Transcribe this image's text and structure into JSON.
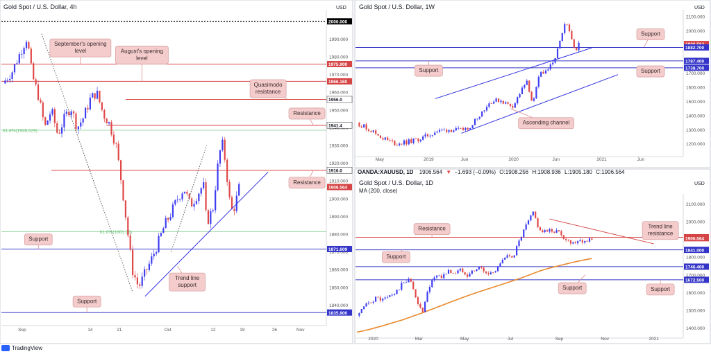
{
  "brand": "TradingView",
  "colors": {
    "up": "#3d3df2",
    "down": "#e04848",
    "hline_red": "#d64545",
    "hline_blue": "#3434c8",
    "trend": "#3434e0",
    "ma": "#e8892c",
    "fib": "#5fc070",
    "note_bg": "#f4cccc",
    "note_border": "#d9a3a3"
  },
  "chart_data": [
    {
      "type": "line",
      "title": "Gold Spot / U.S. Dollar, 4h",
      "currency": "USD",
      "ylim": [
        1830,
        2005
      ],
      "yticks": [
        "1840.000",
        "1850.000",
        "1860.000",
        "1870.000",
        "1880.000",
        "1890.000",
        "1900.000",
        "1910.000",
        "1920.000",
        "1930.000",
        "1940.000",
        "1950.000",
        "1960.000",
        "1970.000",
        "1980.000",
        "1990.000"
      ],
      "xticks": [
        {
          "x": 0.06,
          "label": "Sep"
        },
        {
          "x": 0.27,
          "label": "14"
        },
        {
          "x": 0.36,
          "label": "21"
        },
        {
          "x": 0.51,
          "label": "Oct"
        },
        {
          "x": 0.65,
          "label": "12"
        },
        {
          "x": 0.74,
          "label": "19"
        },
        {
          "x": 0.84,
          "label": "26"
        },
        {
          "x": 0.92,
          "label": "Nov"
        }
      ],
      "series": [
        {
          "values": [
            1965,
            1972,
            1985,
            1991,
            1970,
            1958,
            1940,
            1950,
            1936,
            1945,
            1952,
            1940,
            1946,
            1956,
            1960,
            1948,
            1942,
            1930,
            1905,
            1890,
            1875,
            1860,
            1850,
            1858,
            1866,
            1875,
            1885,
            1892,
            1900,
            1906,
            1896,
            1902,
            1908,
            1886,
            1895,
            1912,
            1926,
            1931,
            1918,
            1900,
            1892,
            1898,
            1906
          ]
        }
      ],
      "x": [
        0.0,
        0.03,
        0.06,
        0.075,
        0.09,
        0.11,
        0.13,
        0.15,
        0.17,
        0.19,
        0.21,
        0.23,
        0.25,
        0.27,
        0.29,
        0.31,
        0.33,
        0.35,
        0.37,
        0.38,
        0.39,
        0.4,
        0.42,
        0.44,
        0.46,
        0.48,
        0.5,
        0.52,
        0.54,
        0.56,
        0.58,
        0.6,
        0.62,
        0.63,
        0.65,
        0.66,
        0.67,
        0.68,
        0.69,
        0.7,
        0.71,
        0.72,
        0.73
      ],
      "xlim": [
        0,
        1
      ],
      "hlines": [
        {
          "value": 2000.0,
          "style": "dotted-black",
          "label": "2000.000",
          "tag": "black"
        },
        {
          "value": 1975.9,
          "style": "red",
          "label": "1975.900",
          "tag": "red"
        },
        {
          "value": 1966.16,
          "style": "red",
          "label": "1966.160",
          "tag": "red"
        },
        {
          "value": 1956.0,
          "style": "red",
          "label": "1956.0",
          "tag": "white",
          "x0": 0.38
        },
        {
          "value": 1941.4,
          "style": "red",
          "label": "1941.4",
          "tag": "white",
          "x0": 0.32
        },
        {
          "value": 1916.0,
          "style": "red",
          "label": "1916.0",
          "tag": "white",
          "x0": 0.15
        },
        {
          "value": 1906.564,
          "style": "none",
          "label": "1906.564",
          "tag": "red"
        },
        {
          "value": 1871.609,
          "style": "blue",
          "label": "1871.609",
          "tag": "blue"
        },
        {
          "value": 1835.8,
          "style": "blue",
          "label": "1835.800",
          "tag": "blue"
        }
      ],
      "fib": [
        {
          "value": 1938.629,
          "label": "61.8%(1938.629)"
        },
        {
          "value": 1881.29,
          "label": "61.8%(1881.29)"
        }
      ],
      "trendlines": [
        {
          "points": [
            [
              0.44,
              1845
            ],
            [
              0.82,
              1915
            ]
          ],
          "style": "solid"
        },
        {
          "points": [
            [
              0.12,
              1993
            ],
            [
              0.4,
              1848
            ]
          ],
          "style": "dotted"
        },
        {
          "points": [
            [
              0.52,
              1870
            ],
            [
              0.63,
              1930
            ]
          ],
          "style": "dotted"
        }
      ],
      "annotations": [
        {
          "text": [
            "September's opening",
            "level"
          ],
          "x": 0.24,
          "y": 1985,
          "arrow": [
            0.24,
            1975.9
          ]
        },
        {
          "text": [
            "August's opening",
            "level"
          ],
          "x": 0.43,
          "y": 1981,
          "arrow": [
            0.43,
            1966.16
          ]
        },
        {
          "text": [
            "Quasimodo",
            "resistance"
          ],
          "x": 0.82,
          "y": 1962,
          "arrow": [
            0.88,
            1956
          ]
        },
        {
          "text": [
            "Resistance"
          ],
          "x": 0.94,
          "y": 1948,
          "arrow": [
            0.96,
            1941.4
          ]
        },
        {
          "text": [
            "Resistance"
          ],
          "x": 0.94,
          "y": 1909,
          "arrow": [
            0.96,
            1916
          ]
        },
        {
          "text": [
            "Support"
          ],
          "x": 0.11,
          "y": 1877,
          "arrow": [
            0.11,
            1871.6
          ]
        },
        {
          "text": [
            "Trend line",
            "support"
          ],
          "x": 0.57,
          "y": 1853,
          "arrow": [
            0.54,
            1862
          ]
        },
        {
          "text": [
            "Support"
          ],
          "x": 0.26,
          "y": 1842,
          "arrow": [
            0.26,
            1835.8
          ]
        }
      ]
    },
    {
      "type": "line",
      "title": "Gold Spot / U.S. Dollar, 1W",
      "currency": "USD",
      "ylim": [
        1130,
        2130
      ],
      "yticks": [
        "1100.000",
        "1200.000",
        "1300.000",
        "1400.000",
        "1500.000",
        "1600.000",
        "1700.000",
        "1800.000",
        "1900.000",
        "2000.000",
        "2100.000"
      ],
      "xticks": [
        {
          "x": 0.07,
          "label": "May"
        },
        {
          "x": 0.22,
          "label": "2019"
        },
        {
          "x": 0.33,
          "label": "Jun"
        },
        {
          "x": 0.48,
          "label": "2020"
        },
        {
          "x": 0.61,
          "label": "Jun"
        },
        {
          "x": 0.75,
          "label": "2021"
        },
        {
          "x": 0.87,
          "label": "Jun"
        }
      ],
      "x": [
        0.0,
        0.04,
        0.08,
        0.12,
        0.16,
        0.2,
        0.24,
        0.28,
        0.32,
        0.35,
        0.38,
        0.41,
        0.44,
        0.46,
        0.48,
        0.5,
        0.52,
        0.54,
        0.56,
        0.58,
        0.6,
        0.62,
        0.64,
        0.65,
        0.66,
        0.67,
        0.68
      ],
      "series": [
        {
          "values": [
            1350,
            1300,
            1240,
            1200,
            1215,
            1240,
            1285,
            1300,
            1295,
            1330,
            1420,
            1500,
            1510,
            1480,
            1470,
            1560,
            1640,
            1480,
            1700,
            1720,
            1760,
            1900,
            2060,
            1990,
            1930,
            1870,
            1906
          ]
        }
      ],
      "xlim": [
        0,
        1
      ],
      "hlines": [
        {
          "value": 1906.564,
          "style": "none",
          "label": "1906.564",
          "tag": "red"
        },
        {
          "value": 1882.7,
          "style": "blue",
          "label": "1882.700",
          "tag": "blue"
        },
        {
          "value": 1787.4,
          "style": "blue",
          "label": "1787.400",
          "tag": "blue"
        },
        {
          "value": 1738.7,
          "style": "blue",
          "label": "1738.700",
          "tag": "blue"
        }
      ],
      "fib": [],
      "trendlines": [
        {
          "points": [
            [
              0.24,
              1520
            ],
            [
              0.72,
              1880
            ]
          ],
          "style": "solid"
        },
        {
          "points": [
            [
              0.32,
              1275
            ],
            [
              0.8,
              1690
            ]
          ],
          "style": "solid"
        }
      ],
      "annotations": [
        {
          "text": [
            "Support"
          ],
          "x": 0.9,
          "y": 1975,
          "arrow": [
            0.88,
            1885
          ]
        },
        {
          "text": [
            "Support"
          ],
          "x": 0.22,
          "y": 1718,
          "arrow": [
            0.22,
            1787
          ]
        },
        {
          "text": [
            "Support"
          ],
          "x": 0.9,
          "y": 1713,
          "arrow": [
            0.9,
            1738
          ]
        },
        {
          "text": [
            "Ascending channel"
          ],
          "x": 0.58,
          "y": 1347,
          "arrow": [
            0.47,
            1450
          ]
        }
      ]
    },
    {
      "type": "line",
      "title": "Gold Spot / U.S. Dollar, 1D",
      "header": {
        "symbol": "OANDA:XAUUSD, 1D",
        "last": "1906.564",
        "change": "−1.693 (−0.09%)",
        "open": "1908.256",
        "high": "1908.936",
        "low": "1905.180",
        "close": "1906.564"
      },
      "indicator": "MA (200, close)",
      "currency": "USD",
      "ylim": [
        1360,
        2140
      ],
      "yticks": [
        "1400.000",
        "1500.000",
        "1600.000",
        "1700.000",
        "1800.000",
        "1900.000",
        "2000.000",
        "2100.000"
      ],
      "xticks": [
        {
          "x": 0.05,
          "label": "2020"
        },
        {
          "x": 0.19,
          "label": "Mar"
        },
        {
          "x": 0.33,
          "label": "May"
        },
        {
          "x": 0.47,
          "label": "Jul"
        },
        {
          "x": 0.62,
          "label": "Sep"
        },
        {
          "x": 0.76,
          "label": "Nov"
        },
        {
          "x": 0.91,
          "label": "2021"
        }
      ],
      "x": [
        0.0,
        0.02,
        0.04,
        0.06,
        0.08,
        0.1,
        0.12,
        0.14,
        0.16,
        0.18,
        0.2,
        0.22,
        0.24,
        0.26,
        0.28,
        0.3,
        0.32,
        0.34,
        0.36,
        0.38,
        0.4,
        0.42,
        0.44,
        0.46,
        0.48,
        0.5,
        0.52,
        0.54,
        0.56,
        0.58,
        0.6,
        0.62,
        0.64,
        0.66,
        0.68,
        0.7,
        0.72
      ],
      "series": [
        {
          "values": [
            1470,
            1510,
            1550,
            1570,
            1560,
            1580,
            1600,
            1650,
            1680,
            1580,
            1480,
            1620,
            1700,
            1690,
            1720,
            1710,
            1730,
            1700,
            1730,
            1740,
            1700,
            1720,
            1770,
            1800,
            1810,
            1900,
            1980,
            2050,
            1950,
            1940,
            1950,
            1940,
            1900,
            1880,
            1900,
            1890,
            1906
          ]
        },
        {
          "name": "MA (200, close)",
          "values": [
            1378,
            1385,
            1394,
            1404,
            1414,
            1425,
            1436,
            1447,
            1460,
            1473,
            1486,
            1500,
            1514,
            1528,
            1542,
            1556,
            1570,
            1583,
            1596,
            1608,
            1620,
            1632,
            1644,
            1656,
            1668,
            1680,
            1694,
            1708,
            1722,
            1733,
            1743,
            1752,
            1761,
            1770,
            1778,
            1786,
            1792
          ]
        }
      ],
      "xlim": [
        0,
        1
      ],
      "hlines": [
        {
          "value": 1911.9,
          "style": "red",
          "label": "1911.900",
          "tag": "red"
        },
        {
          "value": 1906.564,
          "style": "none",
          "label": "1906.564",
          "tag": "red"
        },
        {
          "value": 1841.0,
          "style": "blue",
          "label": "1841.000",
          "tag": "blue"
        },
        {
          "value": 1746.4,
          "style": "blue",
          "label": "1746.400",
          "tag": "blue"
        },
        {
          "value": 1672.5,
          "style": "blue",
          "label": "1672.500",
          "tag": "blue"
        }
      ],
      "fib": [],
      "trendlines": [
        {
          "points": [
            [
              0.59,
              2015
            ],
            [
              0.91,
              1875
            ]
          ],
          "style": "solid-red"
        }
      ],
      "annotations": [
        {
          "text": [
            "Resistance"
          ],
          "x": 0.23,
          "y": 1958,
          "arrow": [
            0.23,
            1911.9
          ]
        },
        {
          "text": [
            "Trend line",
            "resistance"
          ],
          "x": 0.93,
          "y": 1950,
          "arrow": [
            0.9,
            1895
          ]
        },
        {
          "text": [
            "Support"
          ],
          "x": 0.12,
          "y": 1800,
          "arrow": [
            0.14,
            1841
          ]
        },
        {
          "text": [
            "Support"
          ],
          "x": 0.66,
          "y": 1625,
          "arrow": [
            0.7,
            1700
          ]
        },
        {
          "text": [
            "Support"
          ],
          "x": 0.93,
          "y": 1618,
          "arrow": [
            0.93,
            1672.5
          ]
        }
      ]
    }
  ]
}
